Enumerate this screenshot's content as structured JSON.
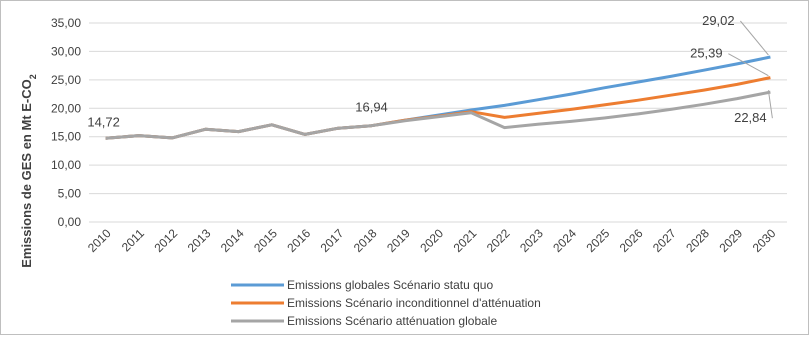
{
  "chart_data": {
    "type": "line",
    "ylabel_main": "Emissions de GES  en Mt E-CO",
    "ylabel_sub": "2",
    "ylim": [
      0,
      35
    ],
    "yticks": [
      "0,00",
      "5,00",
      "10,00",
      "15,00",
      "20,00",
      "25,00",
      "30,00",
      "35,00"
    ],
    "ytick_values": [
      0,
      5,
      10,
      15,
      20,
      25,
      30,
      35
    ],
    "categories": [
      "2010",
      "2011",
      "2012",
      "2013",
      "2014",
      "2015",
      "2016",
      "2017",
      "2018",
      "2019",
      "2020",
      "2021",
      "2022",
      "2023",
      "2024",
      "2025",
      "2026",
      "2027",
      "2028",
      "2029",
      "2030"
    ],
    "grid": true,
    "legend_position": "bottom",
    "series": [
      {
        "name": "Emissions globales Scénario statu quo",
        "color": "#5b9bd5",
        "start_index": 0,
        "values": [
          14.72,
          15.2,
          14.8,
          16.3,
          15.9,
          17.1,
          15.4,
          16.5,
          16.94,
          17.9,
          18.8,
          19.7,
          20.5,
          21.5,
          22.5,
          23.6,
          24.6,
          25.6,
          26.7,
          27.8,
          29.02
        ]
      },
      {
        "name": "Emissions Scénario inconditionnel d'atténuation",
        "color": "#ed7d31",
        "start_index": 0,
        "values": [
          14.72,
          15.2,
          14.8,
          16.3,
          15.9,
          17.1,
          15.4,
          16.5,
          16.94,
          17.9,
          18.6,
          19.4,
          18.4,
          19.1,
          19.8,
          20.6,
          21.4,
          22.3,
          23.2,
          24.2,
          25.39
        ]
      },
      {
        "name": "Emissions Scénario atténuation globale",
        "color": "#a5a5a5",
        "start_index": 0,
        "values": [
          14.72,
          15.2,
          14.8,
          16.3,
          15.9,
          17.1,
          15.4,
          16.5,
          16.94,
          17.8,
          18.5,
          19.2,
          16.6,
          17.2,
          17.7,
          18.3,
          19.0,
          19.8,
          20.7,
          21.7,
          22.84
        ]
      }
    ],
    "data_labels": [
      {
        "text": "14,72",
        "series": 0,
        "index": 0
      },
      {
        "text": "16,94",
        "series": 0,
        "index": 8
      },
      {
        "text": "29,02",
        "series": 0,
        "index": 20
      },
      {
        "text": "25,39",
        "series": 1,
        "index": 20
      },
      {
        "text": "22,84",
        "series": 2,
        "index": 20
      }
    ]
  }
}
